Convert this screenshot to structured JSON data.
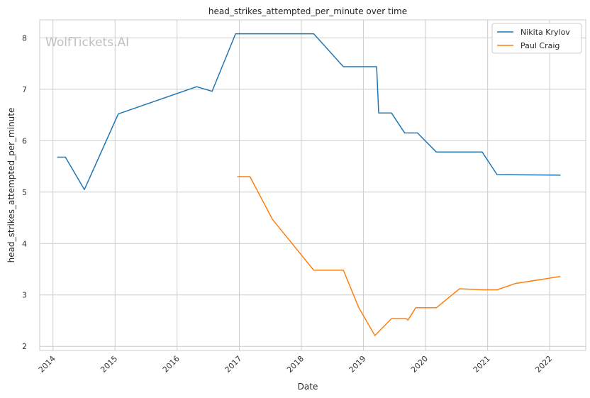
{
  "chart_data": {
    "type": "line",
    "title": "head_strikes_attempted_per_minute over time",
    "xlabel": "Date",
    "ylabel": "head_strikes_attempted_per_minute",
    "watermark": "WolfTickets.AI",
    "xlim": [
      "2013-10-15",
      "2022-08-01"
    ],
    "ylim": [
      1.92,
      8.35
    ],
    "x_ticks": [
      "2014",
      "2015",
      "2016",
      "2017",
      "2018",
      "2019",
      "2020",
      "2021",
      "2022"
    ],
    "y_ticks": [
      2,
      3,
      4,
      5,
      6,
      7,
      8
    ],
    "grid": true,
    "legend_position": "top-right",
    "series": [
      {
        "name": "Nikita Krylov",
        "color": "#1f77b4",
        "points": [
          [
            "2014-01-25",
            5.68
          ],
          [
            "2014-03-15",
            5.68
          ],
          [
            "2014-07-05",
            5.05
          ],
          [
            "2015-01-20",
            6.52
          ],
          [
            "2016-04-25",
            7.05
          ],
          [
            "2016-07-25",
            6.96
          ],
          [
            "2016-12-10",
            8.08
          ],
          [
            "2018-03-15",
            8.08
          ],
          [
            "2018-09-05",
            7.44
          ],
          [
            "2019-03-20",
            7.44
          ],
          [
            "2019-04-01",
            6.54
          ],
          [
            "2019-06-15",
            6.54
          ],
          [
            "2019-09-01",
            6.15
          ],
          [
            "2019-11-15",
            6.15
          ],
          [
            "2020-03-05",
            5.78
          ],
          [
            "2020-11-30",
            5.78
          ],
          [
            "2021-02-25",
            5.34
          ],
          [
            "2022-03-05",
            5.33
          ]
        ]
      },
      {
        "name": "Paul Craig",
        "color": "#ff7f0e",
        "points": [
          [
            "2016-12-20",
            5.3
          ],
          [
            "2017-03-05",
            5.3
          ],
          [
            "2017-07-15",
            4.47
          ],
          [
            "2018-03-15",
            3.48
          ],
          [
            "2018-09-05",
            3.48
          ],
          [
            "2018-12-05",
            2.75
          ],
          [
            "2019-03-10",
            2.21
          ],
          [
            "2019-06-15",
            2.54
          ],
          [
            "2019-09-10",
            2.54
          ],
          [
            "2019-09-20",
            2.51
          ],
          [
            "2019-11-05",
            2.75
          ],
          [
            "2020-03-05",
            2.75
          ],
          [
            "2020-07-20",
            3.12
          ],
          [
            "2020-11-30",
            3.1
          ],
          [
            "2021-02-25",
            3.1
          ],
          [
            "2021-06-10",
            3.22
          ],
          [
            "2022-03-05",
            3.36
          ]
        ]
      }
    ]
  }
}
